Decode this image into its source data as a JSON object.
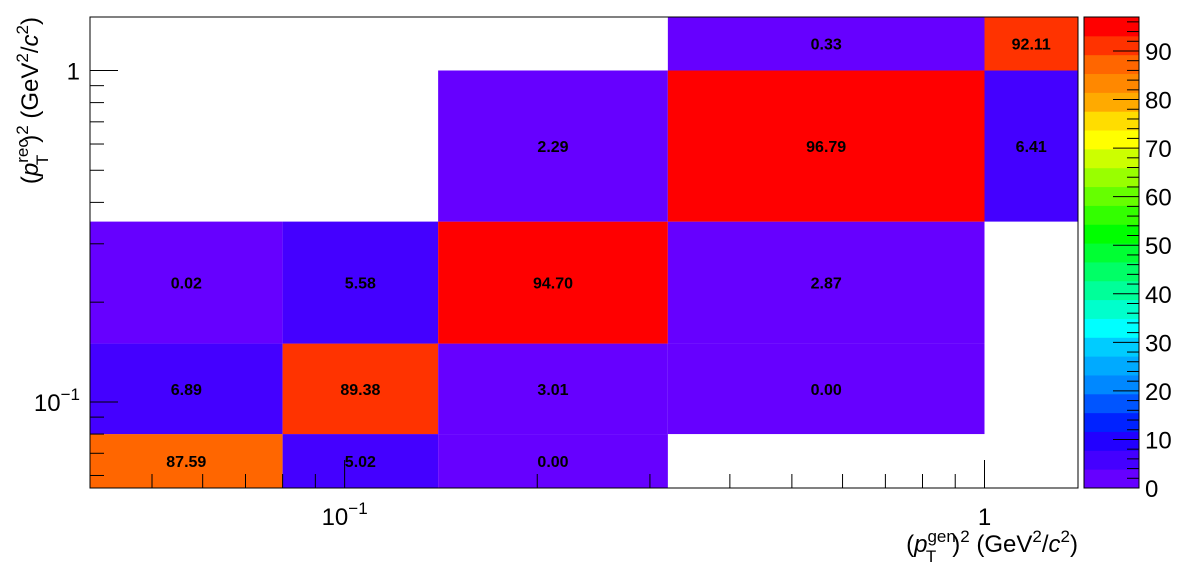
{
  "chart_data": {
    "type": "heatmap",
    "title": "",
    "xlabel": "(p_T^gen)^2 (GeV^2/c^2)",
    "ylabel": "(p_T^rec)^2 (GeV^2/c^2)",
    "xlabel_parts": {
      "open": "(",
      "p": "p",
      "sup": "gen",
      "sub": "T",
      "rest": ")",
      "sq": "2",
      "units": " (GeV",
      "u2": "2",
      "units2": "/",
      "c": "c",
      "c2": "2",
      "close": ")"
    },
    "ylabel_parts": {
      "open": "(",
      "p": "p",
      "sup": "rec",
      "sub": "T",
      "rest": ")",
      "sq": "2",
      "units": " (GeV",
      "u2": "2",
      "units2": "/",
      "c": "c",
      "c2": "2",
      "close": ")"
    },
    "x_scale": "log",
    "y_scale": "log",
    "xlim": [
      0.04,
      1.4
    ],
    "ylim": [
      0.055,
      1.45
    ],
    "x_bin_edges": [
      0.04,
      0.08,
      0.14,
      0.32,
      1.0,
      1.4
    ],
    "y_bin_edges": [
      0.055,
      0.08,
      0.15,
      0.35,
      1.0,
      1.45
    ],
    "x_tick_labels": [
      {
        "value": 0.1,
        "base": "10",
        "exp": "−1"
      },
      {
        "value": 1,
        "base": "1",
        "exp": ""
      }
    ],
    "y_tick_labels": [
      {
        "value": 0.1,
        "base": "10",
        "exp": "−1"
      },
      {
        "value": 1,
        "base": "1",
        "exp": ""
      }
    ],
    "cells": [
      {
        "x_bin": 0,
        "y_bin": 0,
        "value": 87.59,
        "label": "87.59"
      },
      {
        "x_bin": 1,
        "y_bin": 0,
        "value": 5.02,
        "label": "5.02"
      },
      {
        "x_bin": 2,
        "y_bin": 0,
        "value": 0.0,
        "label": "0.00"
      },
      {
        "x_bin": 0,
        "y_bin": 1,
        "value": 6.89,
        "label": "6.89"
      },
      {
        "x_bin": 1,
        "y_bin": 1,
        "value": 89.38,
        "label": "89.38"
      },
      {
        "x_bin": 2,
        "y_bin": 1,
        "value": 3.01,
        "label": "3.01"
      },
      {
        "x_bin": 3,
        "y_bin": 1,
        "value": 0.0,
        "label": "0.00"
      },
      {
        "x_bin": 0,
        "y_bin": 2,
        "value": 0.02,
        "label": "0.02"
      },
      {
        "x_bin": 1,
        "y_bin": 2,
        "value": 5.58,
        "label": "5.58"
      },
      {
        "x_bin": 2,
        "y_bin": 2,
        "value": 94.7,
        "label": "94.70"
      },
      {
        "x_bin": 3,
        "y_bin": 2,
        "value": 2.87,
        "label": "2.87"
      },
      {
        "x_bin": 2,
        "y_bin": 3,
        "value": 2.29,
        "label": "2.29"
      },
      {
        "x_bin": 3,
        "y_bin": 3,
        "value": 96.79,
        "label": "96.79"
      },
      {
        "x_bin": 4,
        "y_bin": 3,
        "value": 6.41,
        "label": "6.41"
      },
      {
        "x_bin": 3,
        "y_bin": 4,
        "value": 0.33,
        "label": "0.33"
      },
      {
        "x_bin": 4,
        "y_bin": 4,
        "value": 92.11,
        "label": "92.11"
      }
    ],
    "colorbar": {
      "range": [
        0,
        97
      ],
      "tick_labels": [
        "0",
        "10",
        "20",
        "30",
        "40",
        "50",
        "60",
        "70",
        "80",
        "90"
      ],
      "palette": [
        "#6600ff",
        "#4400ff",
        "#2200ff",
        "#0022ff",
        "#0055ff",
        "#0088ff",
        "#00aaff",
        "#00ccff",
        "#00ffff",
        "#00ffcc",
        "#00ff99",
        "#00ff66",
        "#00ff33",
        "#00ff00",
        "#33ff00",
        "#66ff00",
        "#99ff00",
        "#ccff00",
        "#ffff00",
        "#ffdd00",
        "#ffaa00",
        "#ff8800",
        "#ff6600",
        "#ff3300",
        "#ff0000"
      ]
    },
    "grid": false,
    "legend": "none"
  }
}
